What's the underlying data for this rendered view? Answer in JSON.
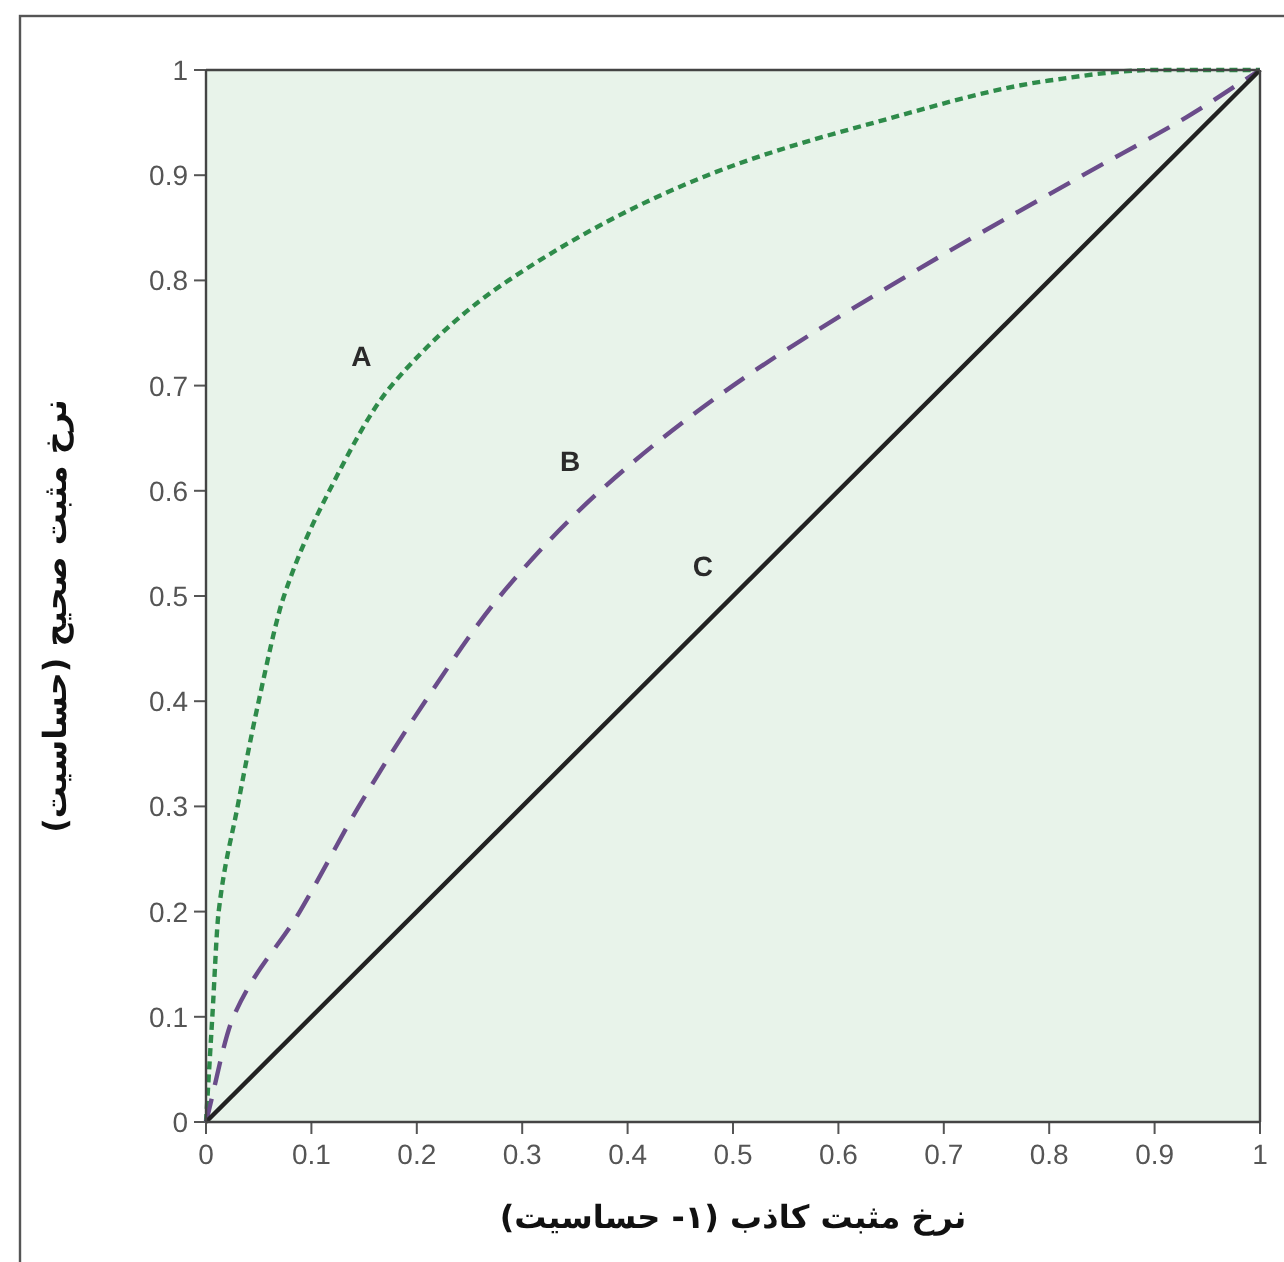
{
  "chart_data": {
    "type": "line",
    "xlabel": "نرخ مثبت کاذب (۱- حساسیت)",
    "ylabel": "نرخ مثبت صحیح (حساسیت)",
    "xlim": [
      0,
      1
    ],
    "ylim": [
      0,
      1
    ],
    "xticks": [
      0,
      0.1,
      0.2,
      0.3,
      0.4,
      0.5,
      0.6,
      0.7,
      0.8,
      0.9,
      1
    ],
    "yticks": [
      0,
      0.1,
      0.2,
      0.3,
      0.4,
      0.5,
      0.6,
      0.7,
      0.8,
      0.9,
      1
    ],
    "series": [
      {
        "name": "A",
        "color": "#2e8b4a",
        "line_style": "dotted",
        "x": [
          0,
          0.006,
          0.012,
          0.03,
          0.05,
          0.074,
          0.117,
          0.176,
          0.287,
          0.476,
          0.634,
          0.8,
          0.9,
          1
        ],
        "values": [
          0,
          0.1,
          0.2,
          0.3,
          0.4,
          0.5,
          0.6,
          0.7,
          0.8,
          0.9,
          0.95,
          0.99,
          1,
          1
        ]
      },
      {
        "name": "B",
        "color": "#6a4c8a",
        "line_style": "dashed",
        "x": [
          0,
          0.026,
          0.089,
          0.145,
          0.208,
          0.279,
          0.374,
          0.5,
          0.658,
          0.832,
          0.93,
          1
        ],
        "values": [
          0,
          0.1,
          0.2,
          0.3,
          0.4,
          0.5,
          0.6,
          0.7,
          0.8,
          0.9,
          0.955,
          1
        ]
      },
      {
        "name": "C",
        "color": "#222222",
        "line_style": "solid",
        "x": [
          0,
          1
        ],
        "values": [
          0,
          1
        ]
      }
    ]
  }
}
